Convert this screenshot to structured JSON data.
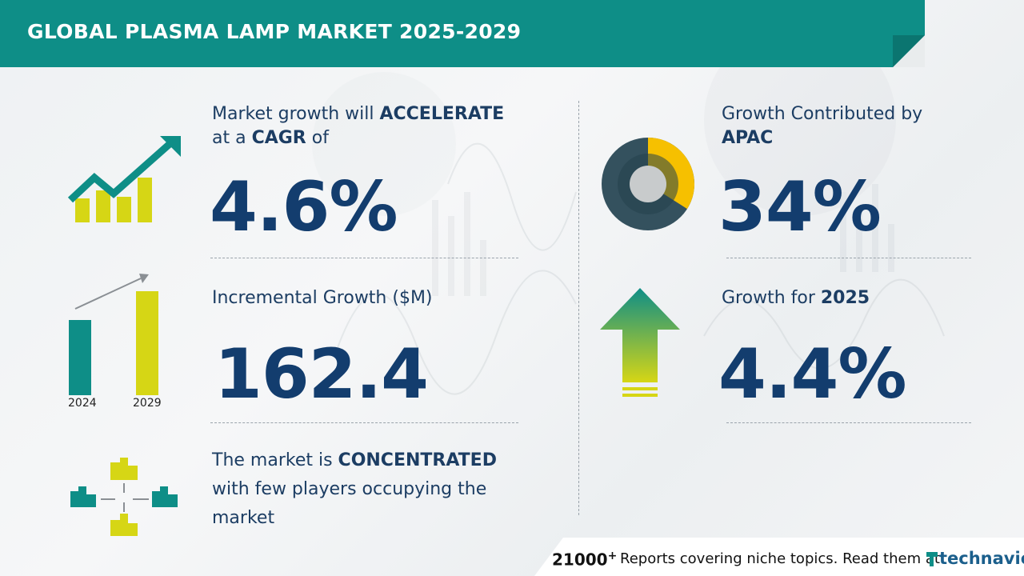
{
  "title": "GLOBAL PLASMA LAMP MARKET 2025-2029",
  "cagr": {
    "pre": "Market growth will ",
    "strong": "ACCELERATE",
    "line2_pre": "at a ",
    "line2_strong": "CAGR",
    "line2_post": " of",
    "value": "4.6%"
  },
  "incremental": {
    "label": "Incremental Growth ($M)",
    "value": "162.4",
    "year_start": "2024",
    "year_end": "2029"
  },
  "market": {
    "pre": "The market is ",
    "strong": "CONCENTRATED",
    "line2": "with few players occupying the",
    "line3": "market"
  },
  "region": {
    "label": "Growth Contributed by",
    "strong": "APAC",
    "value": "34%",
    "share": 0.34
  },
  "year_growth": {
    "label": "Growth for ",
    "strong": "2025",
    "value": "4.4%"
  },
  "footer": {
    "count": "21000",
    "plus": "+",
    "text": "Reports covering niche topics. Read them at",
    "brand": "technavio"
  },
  "colors": {
    "teal": "#0e8e87",
    "navy": "#133d6e",
    "lime": "#d6d615",
    "yellow": "#f6c000",
    "slate": "#34515e"
  },
  "icons": [
    "growth-chart-icon",
    "bar-growth-icon",
    "buildings-icon",
    "donut-icon",
    "up-arrow-icon",
    "technavio-logo-icon"
  ]
}
